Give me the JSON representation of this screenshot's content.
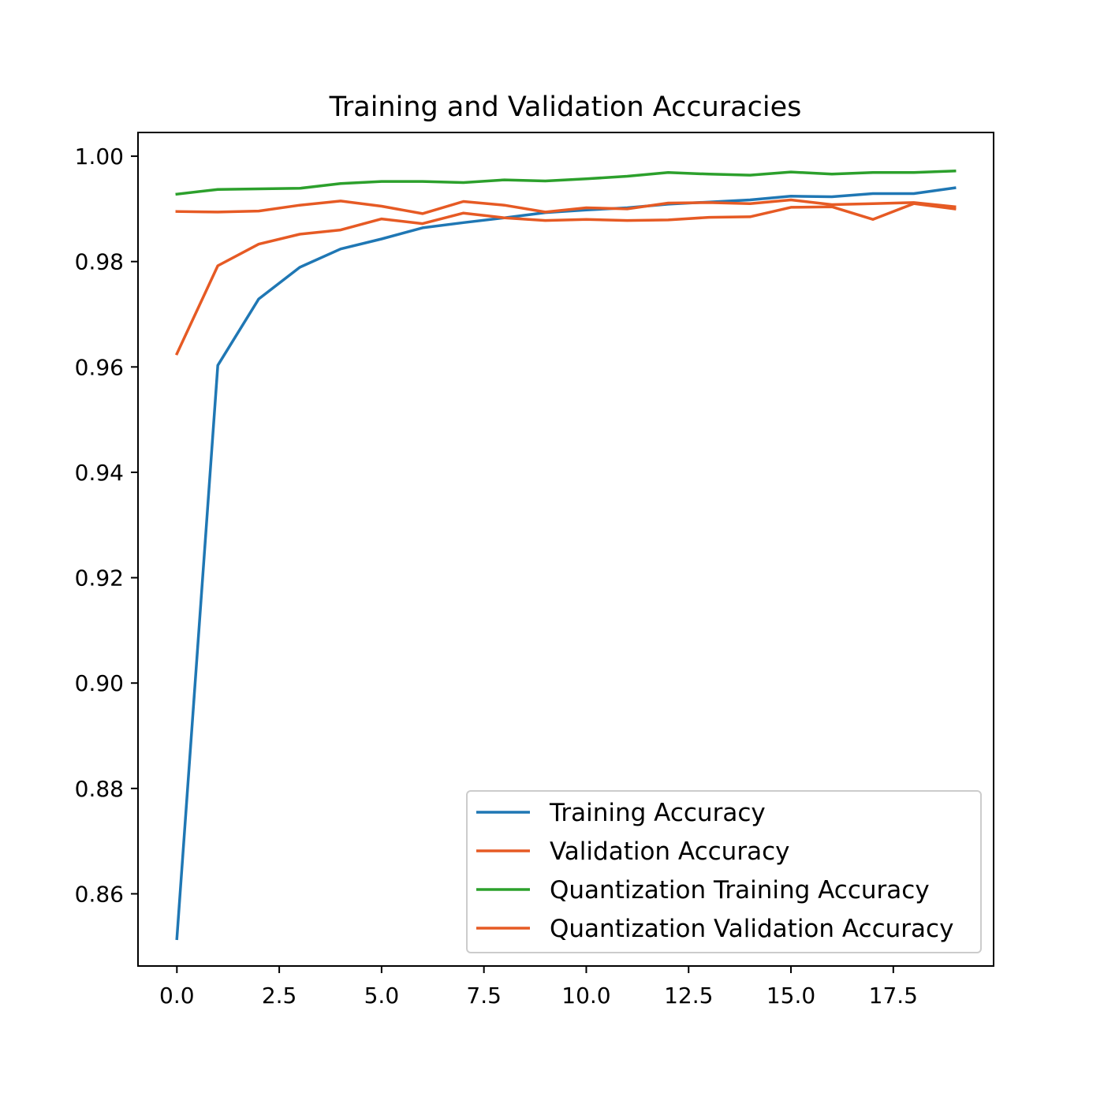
{
  "chart_data": {
    "type": "line",
    "title": "Training and Validation Accuracies",
    "xlabel": "",
    "ylabel": "",
    "xlim": [
      -0.95,
      19.95
    ],
    "ylim": [
      0.8463,
      1.0045
    ],
    "x_ticks": [
      0.0,
      2.5,
      5.0,
      7.5,
      10.0,
      12.5,
      15.0,
      17.5
    ],
    "x_tick_labels": [
      "0.0",
      "2.5",
      "5.0",
      "7.5",
      "10.0",
      "12.5",
      "15.0",
      "17.5"
    ],
    "y_ticks": [
      0.86,
      0.88,
      0.9,
      0.92,
      0.94,
      0.96,
      0.98,
      1.0
    ],
    "y_tick_labels": [
      "0.86",
      "0.88",
      "0.90",
      "0.92",
      "0.94",
      "0.96",
      "0.98",
      "1.00"
    ],
    "grid": false,
    "legend_position": "lower-right",
    "x": [
      0,
      1,
      2,
      3,
      4,
      5,
      6,
      7,
      8,
      9,
      10,
      11,
      12,
      13,
      14,
      15,
      16,
      17,
      18,
      19
    ],
    "series": [
      {
        "name": "Training Accuracy",
        "color": "#1f77b4",
        "values": [
          0.8515,
          0.9603,
          0.9729,
          0.9789,
          0.9824,
          0.9843,
          0.9864,
          0.9874,
          0.9883,
          0.9893,
          0.9898,
          0.9902,
          0.9909,
          0.9913,
          0.9917,
          0.9924,
          0.9923,
          0.9929,
          0.9929,
          0.994
        ]
      },
      {
        "name": "Validation Accuracy",
        "color": "#e65a24",
        "values": [
          0.9625,
          0.9792,
          0.9833,
          0.9852,
          0.986,
          0.9881,
          0.9872,
          0.9892,
          0.9883,
          0.9878,
          0.988,
          0.9878,
          0.9879,
          0.9884,
          0.9885,
          0.9903,
          0.9904,
          0.988,
          0.991,
          0.99
        ]
      },
      {
        "name": "Quantization Training Accuracy",
        "color": "#2ca02c",
        "values": [
          0.9928,
          0.9937,
          0.9938,
          0.9939,
          0.9948,
          0.9952,
          0.9952,
          0.995,
          0.9955,
          0.9953,
          0.9957,
          0.9962,
          0.9969,
          0.9966,
          0.9964,
          0.997,
          0.9966,
          0.9969,
          0.9969,
          0.9972
        ]
      },
      {
        "name": "Quantization Validation Accuracy",
        "color": "#e65a24",
        "values": [
          0.9895,
          0.9894,
          0.9896,
          0.9907,
          0.9915,
          0.9905,
          0.9891,
          0.9914,
          0.9907,
          0.9894,
          0.9902,
          0.99,
          0.9911,
          0.9912,
          0.991,
          0.9917,
          0.9908,
          0.991,
          0.9912,
          0.9904
        ]
      }
    ]
  }
}
